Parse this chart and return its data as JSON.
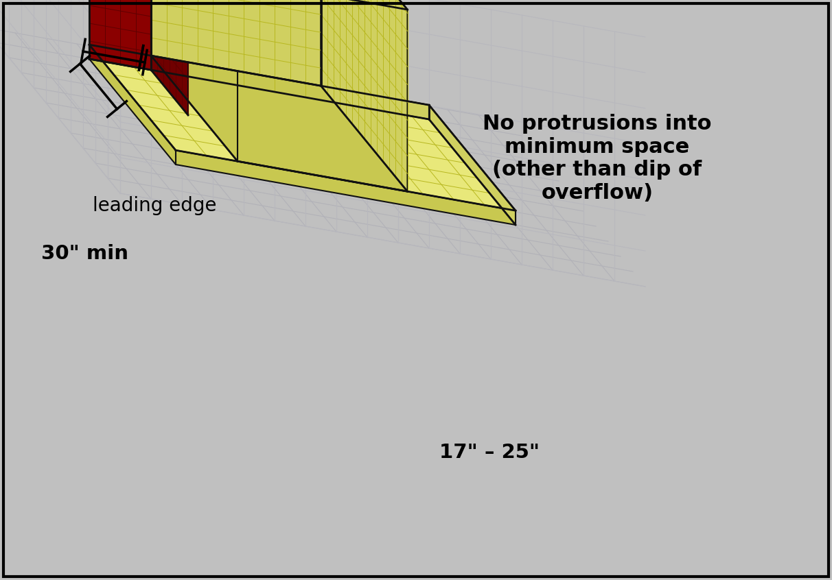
{
  "bg_color": "#c0c0c0",
  "grid_color_floor": "#b2b2b8",
  "grid_color_wall": "#b8b8be",
  "yellow_top": "#e8e87a",
  "yellow_front": "#d0d060",
  "yellow_side": "#c8c850",
  "yellow_light": "#f0f090",
  "red_front": "#8b0000",
  "red_side": "#700000",
  "red_top": "#a01818",
  "outline_color": "#111111",
  "annotation_no_protrusions": "No protrusions into\nminimum space\n(other than dip of\noverflow)",
  "annotation_leading_edge": "leading edge",
  "dim_30": "30\" min",
  "dim_17_25": "17\" – 25\"",
  "font_size_large": 22,
  "font_size_medium": 20,
  "figw": 12.12,
  "figh": 8.46
}
